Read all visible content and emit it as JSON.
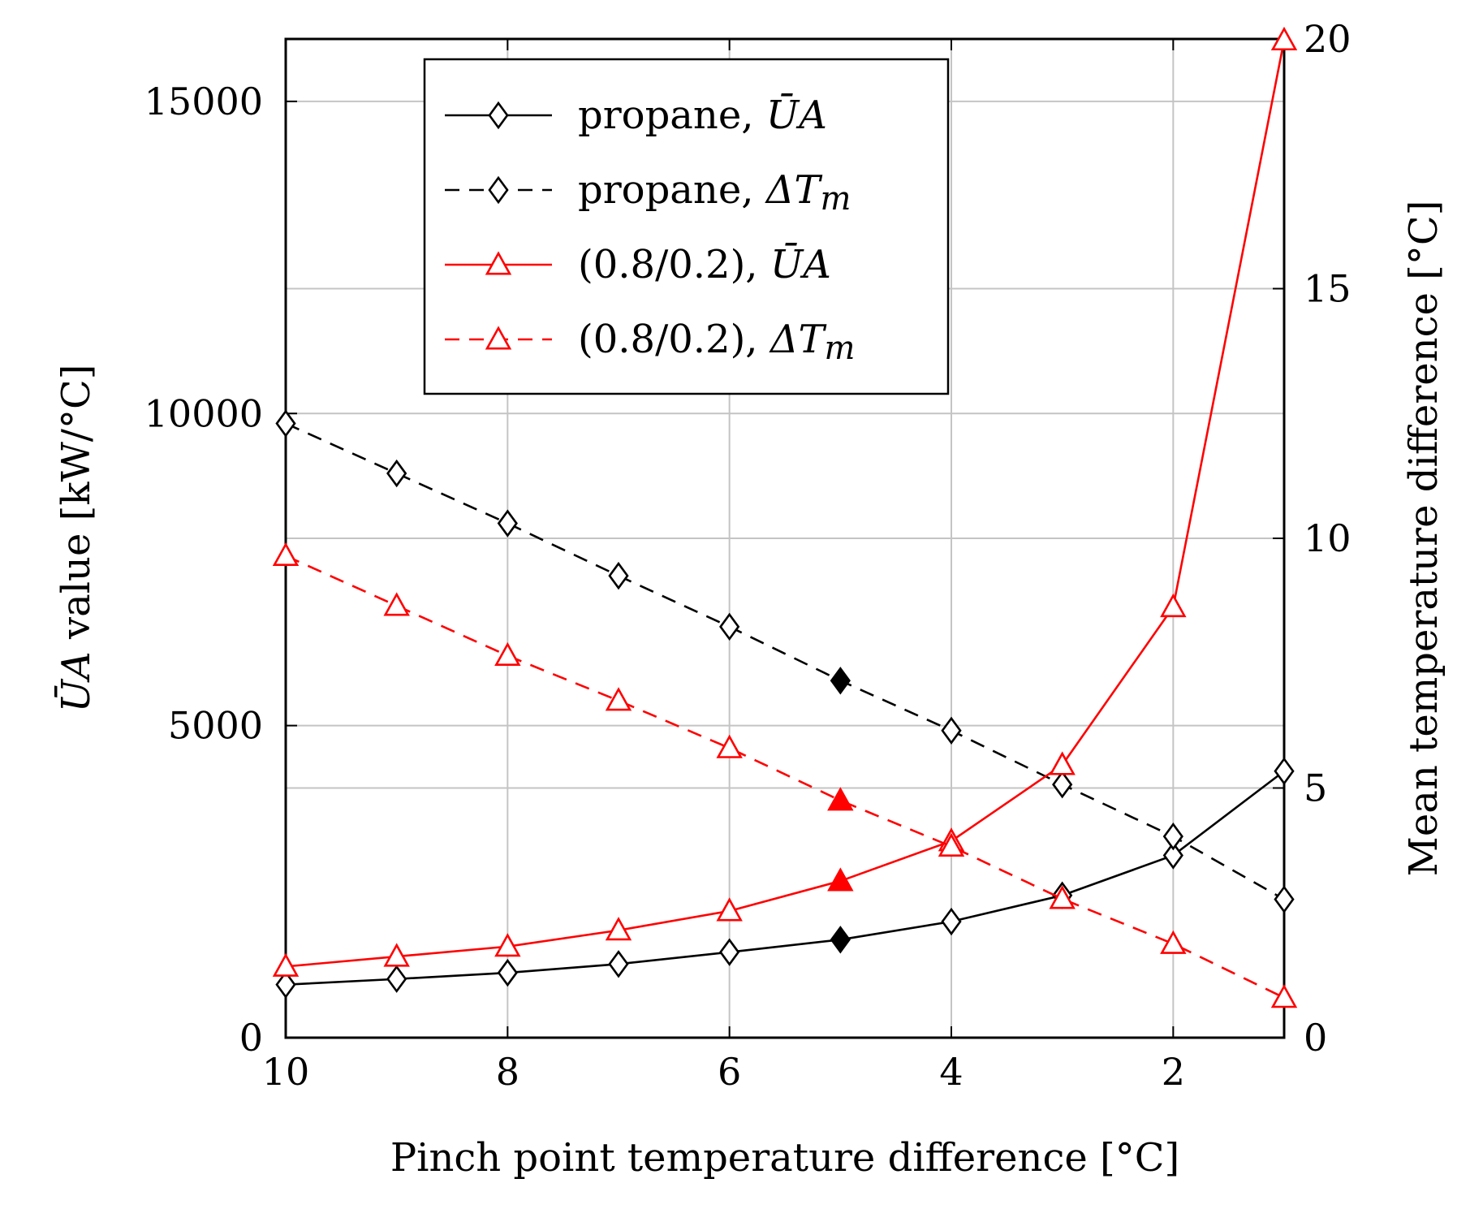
{
  "chart_data": {
    "type": "line",
    "title": "",
    "xlabel": "Pinch point temperature difference [°C]",
    "ylabel": {
      "symbol": "ŪA",
      "rest": " value [kW/°C]"
    },
    "y2label": "Mean temperature difference [°C]",
    "xlim": [
      10,
      1
    ],
    "xticks": [
      10,
      8,
      6,
      4,
      2
    ],
    "ylim": [
      0,
      16000
    ],
    "yticks": [
      0,
      5000,
      10000,
      15000
    ],
    "y2lim": [
      0,
      20
    ],
    "y2ticks": [
      0,
      5,
      10,
      15,
      20
    ],
    "grid": true,
    "legend_position": "top-center",
    "highlight_x": 5,
    "series": [
      {
        "id": "propane-ua",
        "name": "propane, ",
        "name_symbol": "ŪA",
        "axis": "left",
        "color": "#000000",
        "dash": false,
        "marker": "diamond",
        "x": [
          10,
          9,
          8,
          7,
          6,
          5,
          4,
          3,
          2,
          1
        ],
        "values": [
          850,
          940,
          1040,
          1180,
          1370,
          1570,
          1860,
          2280,
          2920,
          4270
        ]
      },
      {
        "id": "propane-dtm",
        "name": "propane, ",
        "name_symbol": "ΔT",
        "name_sub": "m",
        "axis": "right",
        "color": "#000000",
        "dash": true,
        "marker": "diamond",
        "x": [
          10,
          9,
          8,
          7,
          6,
          5,
          4,
          3,
          2,
          1
        ],
        "values": [
          12.3,
          11.3,
          10.3,
          9.25,
          8.23,
          7.15,
          6.15,
          5.07,
          4.03,
          2.77
        ]
      },
      {
        "id": "mix-ua",
        "name": "(0.8/0.2), ",
        "name_symbol": "ŪA",
        "axis": "left",
        "color": "#ff0000",
        "dash": false,
        "marker": "triangle",
        "x": [
          10,
          9,
          8,
          7,
          6,
          5,
          4,
          3,
          2,
          1
        ],
        "values": [
          1140,
          1300,
          1460,
          1720,
          2030,
          2510,
          3150,
          4370,
          6900,
          15980
        ]
      },
      {
        "id": "mix-dtm",
        "name": "(0.8/0.2), ",
        "name_symbol": "ΔT",
        "name_sub": "m",
        "axis": "right",
        "color": "#ff0000",
        "dash": true,
        "marker": "triangle",
        "x": [
          10,
          9,
          8,
          7,
          6,
          5,
          4,
          3,
          2,
          1
        ],
        "values": [
          9.65,
          8.65,
          7.65,
          6.75,
          5.8,
          4.75,
          3.83,
          2.78,
          1.88,
          0.8
        ]
      }
    ]
  }
}
